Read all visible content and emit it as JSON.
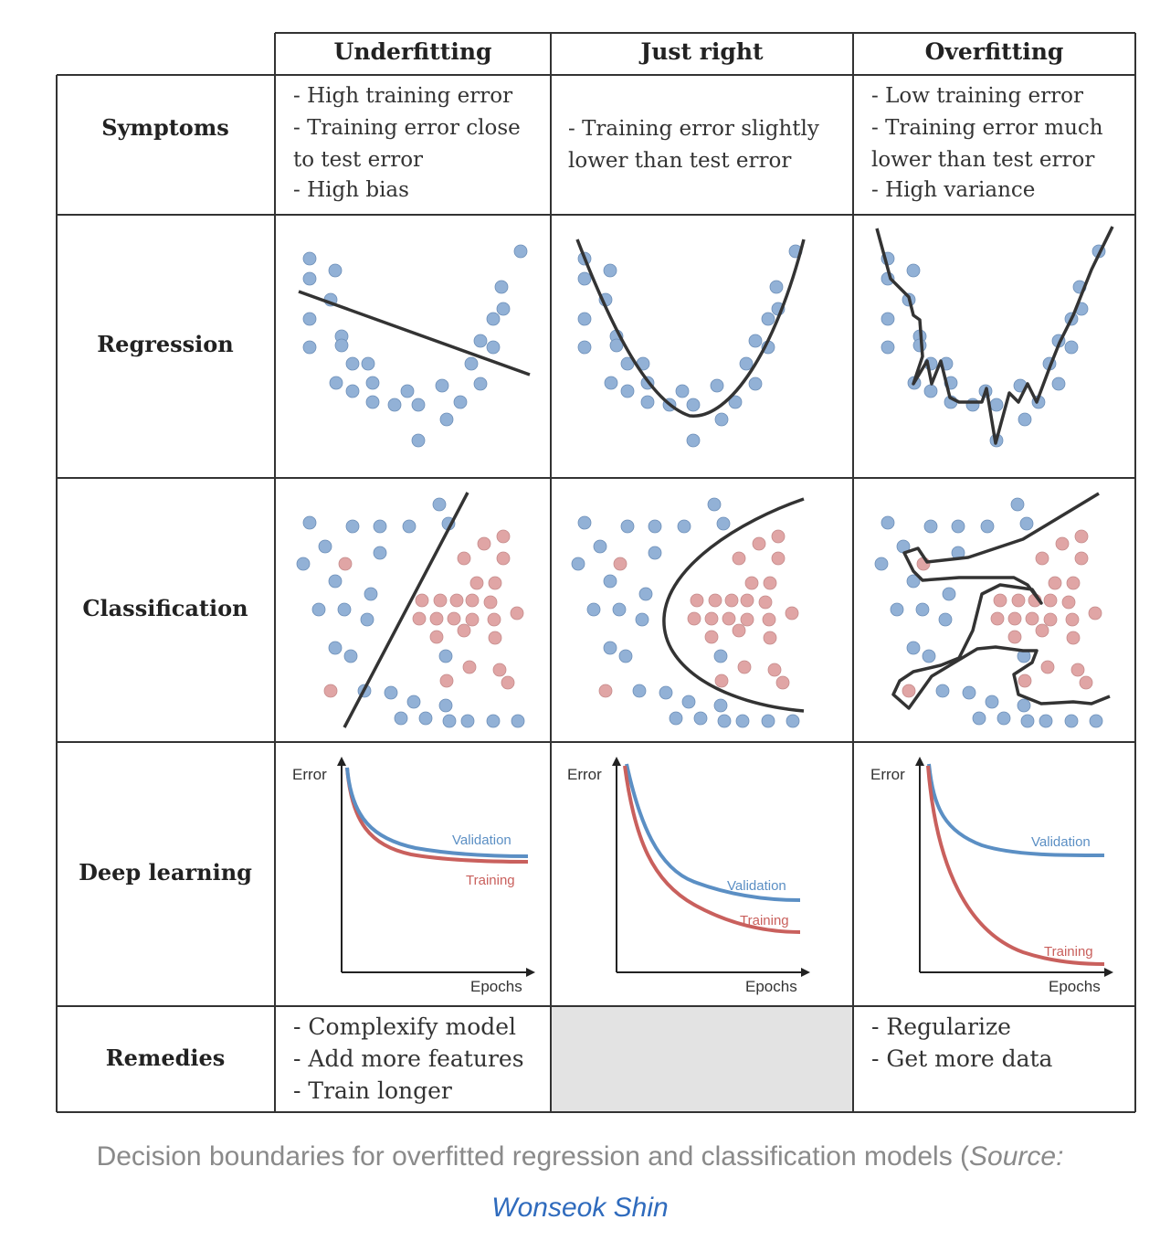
{
  "columns": [
    "Underfitting",
    "Just right",
    "Overfitting"
  ],
  "rows": [
    "Symptoms",
    "Regression",
    "Classification",
    "Deep learning",
    "Remedies"
  ],
  "symptoms": {
    "underfitting": [
      "- High training error",
      "- Training error close",
      "to test error",
      "- High bias"
    ],
    "just_right": [
      "- Training error slightly",
      "lower than test error"
    ],
    "overfitting": [
      "- Low training error",
      "- Training error much",
      "lower than test error",
      "- High variance"
    ]
  },
  "remedies": {
    "underfitting": [
      "- Complexify model",
      "- Add more features",
      "- Train longer"
    ],
    "overfitting": [
      "- Regularize",
      "- Get more data"
    ]
  },
  "deep_learning": {
    "y_axis_label": "Error",
    "x_axis_label": "Epochs",
    "validation_label": "Validation",
    "training_label": "Training",
    "validation_color": "#5b8fc4",
    "training_color": "#c9605d"
  },
  "colors": {
    "blue_point": "#92b1d6",
    "red_point": "#e0a5a5",
    "remedies_empty_cell": "#e3e3e3",
    "border": "#333333"
  },
  "caption": {
    "text": "Decision boundaries for overfitted regression and classification models (",
    "source_label": "Source:",
    "link_text": "Wonseok Shin"
  }
}
